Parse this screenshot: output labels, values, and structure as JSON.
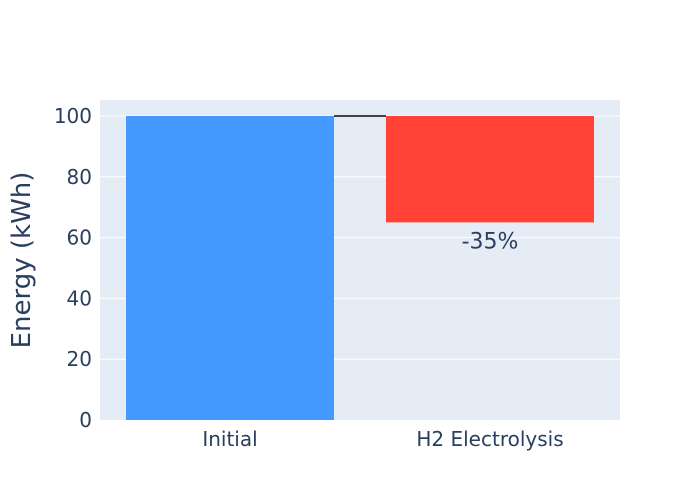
{
  "chart_data": {
    "type": "waterfall",
    "categories": [
      "Initial",
      "H2 Electrolysis"
    ],
    "measures": [
      "absolute",
      "relative"
    ],
    "values": [
      100,
      -35
    ],
    "text": [
      "",
      "-35%"
    ],
    "ylabel": "Energy (kWh)",
    "ylim": [
      0,
      100
    ],
    "yticks": [
      0,
      20,
      40,
      60,
      80,
      100
    ],
    "grid": true,
    "legend": "none",
    "colors": {
      "absolute": "#4499ff",
      "decreasing": "#ff4136",
      "plot_bg": "#e5ecf6",
      "text": "#2a3f5f",
      "connector": "#444444"
    }
  }
}
